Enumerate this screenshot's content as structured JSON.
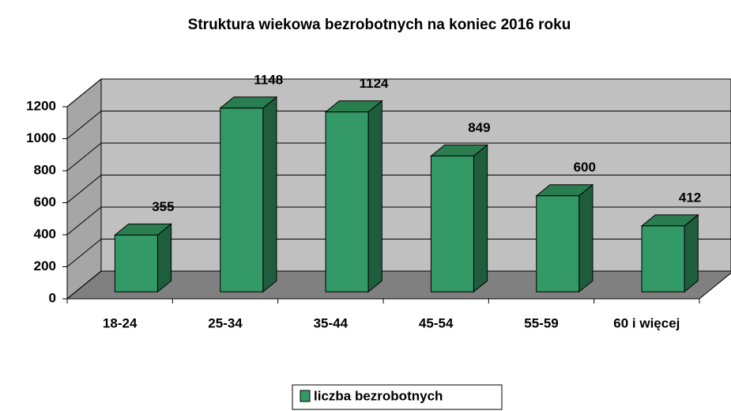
{
  "chart_data": {
    "type": "bar3d",
    "title": "Struktura wiekowa bezrobotnych na koniec 2016 roku",
    "categories": [
      "18-24",
      "25-34",
      "35-44",
      "45-54",
      "55-59",
      "60 i więcej"
    ],
    "series": [
      {
        "name": "liczba bezrobotnych",
        "color": "#339966",
        "values": [
          355,
          1148,
          1124,
          849,
          600,
          412
        ]
      }
    ],
    "ylim": [
      0,
      1200
    ],
    "yticks": [
      0,
      200,
      400,
      600,
      800,
      1000,
      1200
    ],
    "grid": true,
    "legend": "bottom"
  }
}
